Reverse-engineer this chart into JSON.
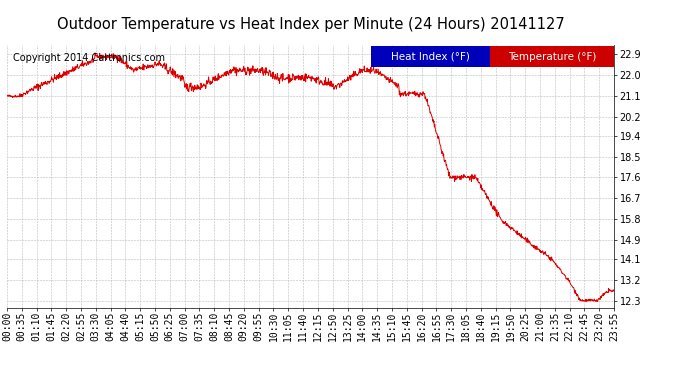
{
  "title": "Outdoor Temperature vs Heat Index per Minute (24 Hours) 20141127",
  "copyright": "Copyright 2014 Cartronics.com",
  "legend_labels": [
    "Heat Index (°F)",
    "Temperature (°F)"
  ],
  "legend_bg_colors": [
    "#0000bb",
    "#cc0000"
  ],
  "line_color": "#dd0000",
  "y_ticks": [
    12.3,
    13.2,
    14.1,
    14.9,
    15.8,
    16.7,
    17.6,
    18.5,
    19.4,
    20.2,
    21.1,
    22.0,
    22.9
  ],
  "y_min": 12.0,
  "y_max": 23.3,
  "x_tick_labels": [
    "00:00",
    "00:35",
    "01:10",
    "01:45",
    "02:20",
    "02:55",
    "03:30",
    "04:05",
    "04:40",
    "05:15",
    "05:50",
    "06:25",
    "07:00",
    "07:35",
    "08:10",
    "08:45",
    "09:20",
    "09:55",
    "10:30",
    "11:05",
    "11:40",
    "12:15",
    "12:50",
    "13:25",
    "14:00",
    "14:35",
    "15:10",
    "15:45",
    "16:20",
    "16:55",
    "17:30",
    "18:05",
    "18:40",
    "19:15",
    "19:50",
    "20:25",
    "21:00",
    "21:35",
    "22:10",
    "22:45",
    "23:20",
    "23:55"
  ],
  "bg_color": "#ffffff",
  "plot_bg_color": "#ffffff",
  "grid_color": "#bbbbbb",
  "title_fontsize": 10.5,
  "copyright_fontsize": 7,
  "tick_fontsize": 7
}
